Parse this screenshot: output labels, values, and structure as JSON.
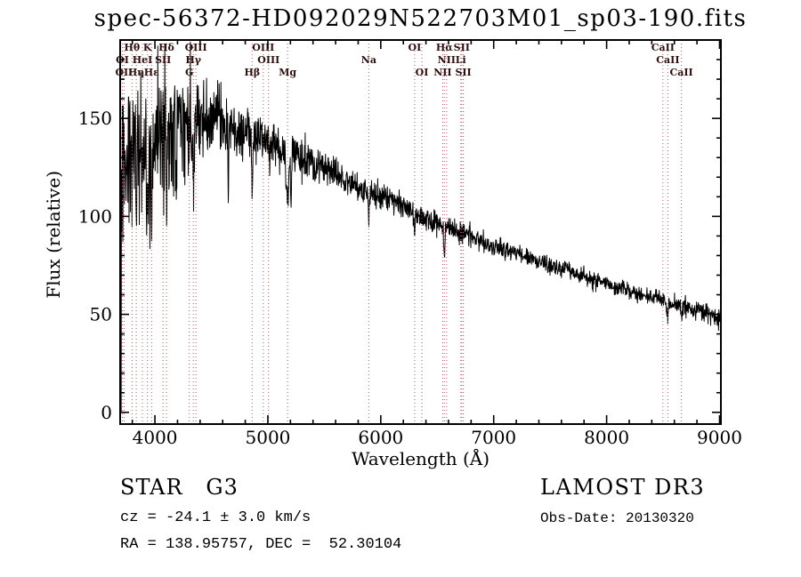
{
  "title": "spec-56372-HD092029N522703M01_sp03-190.fits",
  "annotations": {
    "class_label": "STAR   G3",
    "survey": "LAMOST DR3",
    "cz": "cz = -24.1 ± 3.0 km/s",
    "obs_date": "Obs-Date: 20130320",
    "coords": "RA = 138.95757, DEC =  52.30104"
  },
  "chart_data": {
    "type": "line",
    "title": "spec-56372-HD092029N522703M01_sp03-190.fits",
    "xlabel": "Wavelength (Å)",
    "ylabel": "Flux (relative)",
    "xlim": [
      3692,
      9012
    ],
    "ylim": [
      -6,
      190
    ],
    "xticks": [
      4000,
      5000,
      6000,
      7000,
      8000,
      9000
    ],
    "yticks": [
      0,
      50,
      100,
      150
    ],
    "grid": false,
    "legend": "none",
    "line_color": "#000000",
    "marker_color": "#ad5f5f",
    "label_color": "#2e0f0f",
    "frame_color": "#000000",
    "spectral_lines": [
      {
        "wavelength": 3712,
        "label": "OI",
        "row": 1
      },
      {
        "wavelength": 3727,
        "label": "OII",
        "row": 2
      },
      {
        "wavelength": 3798,
        "label": "Hθ",
        "row": 0
      },
      {
        "wavelength": 3835,
        "label": "Hη",
        "row": 2
      },
      {
        "wavelength": 3889,
        "label": "HeI",
        "row": 1
      },
      {
        "wavelength": 3934,
        "label": "K",
        "row": 0
      },
      {
        "wavelength": 3970,
        "label": "Hε",
        "row": 2
      },
      {
        "wavelength": 4072,
        "label": "SII",
        "row": 1
      },
      {
        "wavelength": 4102,
        "label": "Hδ",
        "row": 0
      },
      {
        "wavelength": 4304,
        "label": "G",
        "row": 2
      },
      {
        "wavelength": 4340,
        "label": "Hγ",
        "row": 1
      },
      {
        "wavelength": 4363,
        "label": "OIII",
        "row": 0
      },
      {
        "wavelength": 4861,
        "label": "Hβ",
        "row": 2
      },
      {
        "wavelength": 4959,
        "label": "OIII",
        "row": 0
      },
      {
        "wavelength": 5007,
        "label": "OIII",
        "row": 1
      },
      {
        "wavelength": 5175,
        "label": "Mg",
        "row": 2
      },
      {
        "wavelength": 5894,
        "label": "Na",
        "row": 1
      },
      {
        "wavelength": 6300,
        "label": "OI",
        "row": 0
      },
      {
        "wavelength": 6364,
        "label": "OI",
        "row": 2
      },
      {
        "wavelength": 6548,
        "label": "NII",
        "row": 2
      },
      {
        "wavelength": 6563,
        "label": "Hα",
        "row": 0
      },
      {
        "wavelength": 6583,
        "label": "NII",
        "row": 1
      },
      {
        "wavelength": 6708,
        "label": "Li",
        "row": 1
      },
      {
        "wavelength": 6717,
        "label": "SII",
        "row": 0
      },
      {
        "wavelength": 6731,
        "label": "SII",
        "row": 2
      },
      {
        "wavelength": 8498,
        "label": "CaII",
        "row": 0
      },
      {
        "wavelength": 8542,
        "label": "CaII",
        "row": 1
      },
      {
        "wavelength": 8662,
        "label": "CaII",
        "row": 2
      }
    ],
    "continuum_anchors": [
      [
        3700,
        125
      ],
      [
        3760,
        132
      ],
      [
        3850,
        134
      ],
      [
        3950,
        136
      ],
      [
        4050,
        139
      ],
      [
        4150,
        141
      ],
      [
        4250,
        144
      ],
      [
        4350,
        147
      ],
      [
        4450,
        152
      ],
      [
        4550,
        151
      ],
      [
        4650,
        148
      ],
      [
        4750,
        145
      ],
      [
        4850,
        143
      ],
      [
        4950,
        141
      ],
      [
        5050,
        139
      ],
      [
        5150,
        136
      ],
      [
        5250,
        134
      ],
      [
        5350,
        132
      ],
      [
        5450,
        129
      ],
      [
        5550,
        126
      ],
      [
        5650,
        122
      ],
      [
        5750,
        119
      ],
      [
        5850,
        116
      ],
      [
        5950,
        113
      ],
      [
        6050,
        110
      ],
      [
        6150,
        107
      ],
      [
        6250,
        103
      ],
      [
        6350,
        100
      ],
      [
        6450,
        97
      ],
      [
        6550,
        94
      ],
      [
        6650,
        91
      ],
      [
        6750,
        89
      ],
      [
        6850,
        86
      ],
      [
        6950,
        83
      ],
      [
        7050,
        81
      ],
      [
        7150,
        79
      ],
      [
        7250,
        77
      ],
      [
        7350,
        75
      ],
      [
        7450,
        73
      ],
      [
        7550,
        71
      ],
      [
        7650,
        70
      ],
      [
        7750,
        68
      ],
      [
        7850,
        66
      ],
      [
        7950,
        65
      ],
      [
        8050,
        63
      ],
      [
        8150,
        62
      ],
      [
        8250,
        60
      ],
      [
        8350,
        59
      ],
      [
        8450,
        58
      ],
      [
        8550,
        56
      ],
      [
        8650,
        55
      ],
      [
        8750,
        53
      ],
      [
        8850,
        52
      ],
      [
        8950,
        50
      ],
      [
        9010,
        47
      ]
    ],
    "noise_sigma_anchors": [
      [
        3700,
        30
      ],
      [
        3800,
        32
      ],
      [
        3900,
        30
      ],
      [
        4000,
        30
      ],
      [
        4100,
        28
      ],
      [
        4200,
        26
      ],
      [
        4300,
        22
      ],
      [
        4400,
        18
      ],
      [
        4500,
        15
      ],
      [
        4600,
        13
      ],
      [
        4700,
        12
      ],
      [
        4900,
        11
      ],
      [
        5100,
        10
      ],
      [
        5300,
        9
      ],
      [
        5500,
        8
      ],
      [
        5700,
        7
      ],
      [
        5900,
        6.5
      ],
      [
        6100,
        6
      ],
      [
        6300,
        5.5
      ],
      [
        6600,
        5
      ],
      [
        7000,
        4.2
      ],
      [
        7400,
        3.8
      ],
      [
        7800,
        3.6
      ],
      [
        8200,
        3.6
      ],
      [
        8600,
        3.8
      ],
      [
        9010,
        4.5
      ]
    ],
    "absorption_dips": [
      [
        3727,
        20,
        4
      ],
      [
        3798,
        28,
        5
      ],
      [
        3835,
        30,
        5
      ],
      [
        3889,
        32,
        5
      ],
      [
        3934,
        40,
        6
      ],
      [
        3970,
        36,
        6
      ],
      [
        4102,
        36,
        6
      ],
      [
        4340,
        30,
        6
      ],
      [
        4650,
        35,
        4
      ],
      [
        4861,
        22,
        7
      ],
      [
        5015,
        18,
        4
      ],
      [
        5175,
        22,
        14
      ],
      [
        5205,
        32,
        5
      ],
      [
        5894,
        16,
        7
      ],
      [
        6300,
        8,
        5
      ],
      [
        6563,
        16,
        7
      ],
      [
        8542,
        7,
        8
      ],
      [
        8662,
        6,
        8
      ]
    ],
    "edge_effects": {
      "left_start_flux": 0,
      "right_end_flux": 14
    }
  }
}
